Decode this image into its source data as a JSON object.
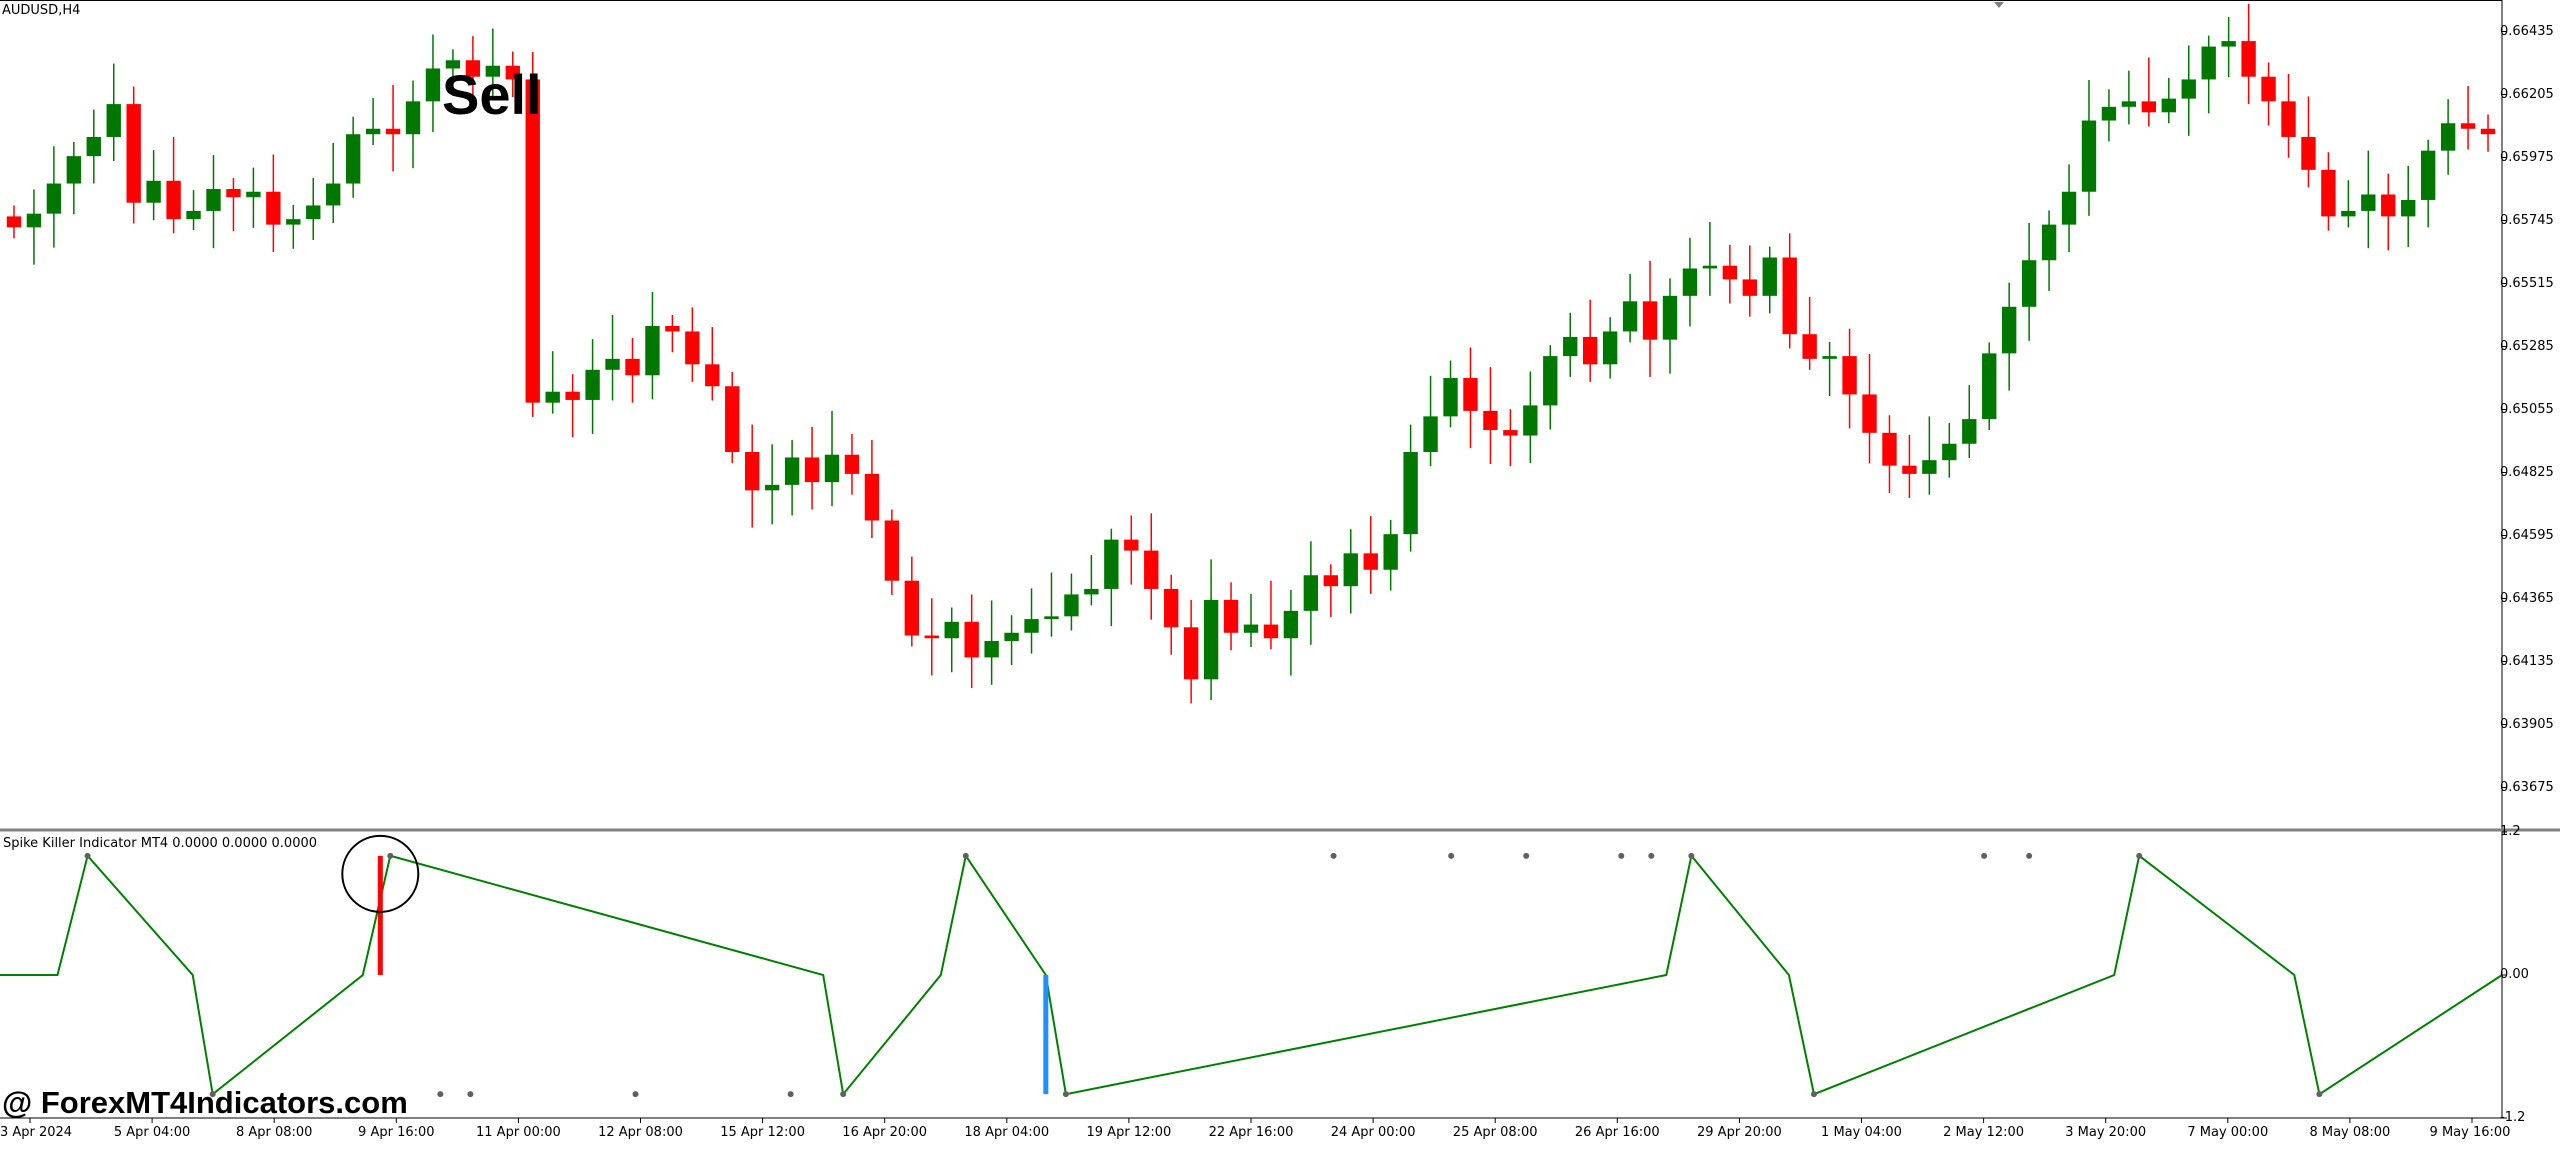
{
  "chart": {
    "symbol_label": "AUDUSD,H4",
    "indicator_label": "Spike Killer Indicator MT4 0.0000 0.0000 0.0000",
    "signal_text": "Sell",
    "watermark": "@ ForexMT4Indicators.com",
    "colors": {
      "bull": "#007700",
      "bear": "#ff0000",
      "indicator_line": "#008000",
      "sell_signal": "#ff0000",
      "buy_signal": "#1e90ff",
      "dots": "#606060",
      "axis": "#000000"
    }
  },
  "chart_data": [
    {
      "type": "candlestick",
      "symbol": "AUDUSD",
      "timeframe": "H4",
      "ylim": [
        0.6352,
        0.6655
      ],
      "price_axis_ticks": [
        "0.66435",
        "0.66205",
        "0.65975",
        "0.65745",
        "0.65515",
        "0.65285",
        "0.65055",
        "0.64825",
        "0.64595",
        "0.64365",
        "0.64135",
        "0.63905",
        "0.63675"
      ],
      "time_axis_ticks": [
        "3 Apr 2024",
        "5 Apr 04:00",
        "8 Apr 08:00",
        "9 Apr 16:00",
        "11 Apr 00:00",
        "12 Apr 08:00",
        "15 Apr 12:00",
        "16 Apr 20:00",
        "18 Apr 04:00",
        "19 Apr 12:00",
        "22 Apr 16:00",
        "24 Apr 00:00",
        "25 Apr 08:00",
        "26 Apr 16:00",
        "29 Apr 20:00",
        "1 May 04:00",
        "2 May 12:00",
        "3 May 20:00",
        "7 May 00:00",
        "8 May 08:00",
        "9 May 16:00"
      ],
      "close_path": [
        0.6572,
        0.6577,
        0.6588,
        0.6598,
        0.6605,
        0.6617,
        0.6581,
        0.6589,
        0.6575,
        0.6578,
        0.6586,
        0.6583,
        0.6585,
        0.6573,
        0.6575,
        0.658,
        0.6588,
        0.6606,
        0.6608,
        0.6606,
        0.6618,
        0.663,
        0.6633,
        0.6627,
        0.6631,
        0.6626,
        0.6508,
        0.6512,
        0.6509,
        0.652,
        0.6524,
        0.6518,
        0.6536,
        0.6534,
        0.6522,
        0.6514,
        0.649,
        0.6476,
        0.6478,
        0.6488,
        0.6479,
        0.6489,
        0.6482,
        0.6465,
        0.6443,
        0.6423,
        0.6422,
        0.6428,
        0.6415,
        0.6421,
        0.6424,
        0.6429,
        0.643,
        0.6438,
        0.644,
        0.6458,
        0.6454,
        0.644,
        0.6426,
        0.6407,
        0.6436,
        0.6424,
        0.6427,
        0.6422,
        0.6432,
        0.6445,
        0.6441,
        0.6453,
        0.6447,
        0.646,
        0.649,
        0.6503,
        0.6517,
        0.6505,
        0.6498,
        0.6496,
        0.6507,
        0.6525,
        0.6532,
        0.6522,
        0.6534,
        0.6545,
        0.6531,
        0.6547,
        0.6557,
        0.6558,
        0.6553,
        0.6547,
        0.6561,
        0.6533,
        0.6524,
        0.6525,
        0.6511,
        0.6497,
        0.6485,
        0.6482,
        0.6487,
        0.6493,
        0.6502,
        0.6526,
        0.6543,
        0.656,
        0.6573,
        0.6585,
        0.6611,
        0.6616,
        0.6618,
        0.6614,
        0.6619,
        0.6626,
        0.6638,
        0.664,
        0.6627,
        0.6618,
        0.6605,
        0.6593,
        0.6576,
        0.6578,
        0.6584,
        0.6576,
        0.6582,
        0.66,
        0.661,
        0.6608,
        0.6606
      ]
    },
    {
      "type": "line",
      "name": "Spike Killer Indicator MT4",
      "ylim": [
        -1.2,
        1.2
      ],
      "value_axis_ticks": [
        "1.2",
        "0.00",
        "-1.2"
      ],
      "points": [
        [
          0,
          0
        ],
        [
          0.09,
          1
        ],
        [
          0.07,
          0
        ],
        [
          0.08,
          -1
        ],
        [
          0.07,
          0
        ],
        [
          0.09,
          1
        ],
        [
          0.07,
          0
        ],
        [
          0.08,
          -1
        ],
        [
          0.07,
          0
        ],
        [
          0.1,
          1
        ],
        [
          0.07,
          0
        ],
        [
          0.08,
          -1
        ],
        [
          0.07,
          0
        ],
        [
          0.13,
          1
        ],
        [
          0.07,
          0
        ],
        [
          0.08,
          -1
        ],
        [
          0.07,
          0
        ],
        [
          0.16,
          1
        ],
        [
          0.07,
          0
        ],
        [
          0.08,
          -1
        ],
        [
          0.07,
          0
        ],
        [
          0.1,
          0
        ]
      ],
      "line_x_fraction": [
        0.0,
        0.023,
        0.035,
        0.077,
        0.085,
        0.145,
        0.156,
        0.329,
        0.337,
        0.376,
        0.386,
        0.418,
        0.426,
        0.666,
        0.676,
        0.715,
        0.725,
        0.845,
        0.855,
        0.917,
        0.927,
        1.0
      ],
      "line_y_values": [
        0,
        0,
        1,
        0,
        -1,
        0,
        1,
        0,
        -1,
        0,
        1,
        0,
        -1,
        0,
        1,
        0,
        -1,
        0,
        1,
        0,
        -1,
        0
      ],
      "signals": [
        {
          "kind": "sell",
          "label": "Sell",
          "x_fraction": 0.152
        },
        {
          "kind": "buy",
          "x_fraction": 0.418
        }
      ],
      "dots_top_x_fraction": [
        0.533,
        0.58,
        0.61,
        0.648,
        0.66,
        0.793,
        0.811
      ],
      "dots_bottom_x_fraction": [
        0.176,
        0.188,
        0.254,
        0.316
      ]
    }
  ]
}
